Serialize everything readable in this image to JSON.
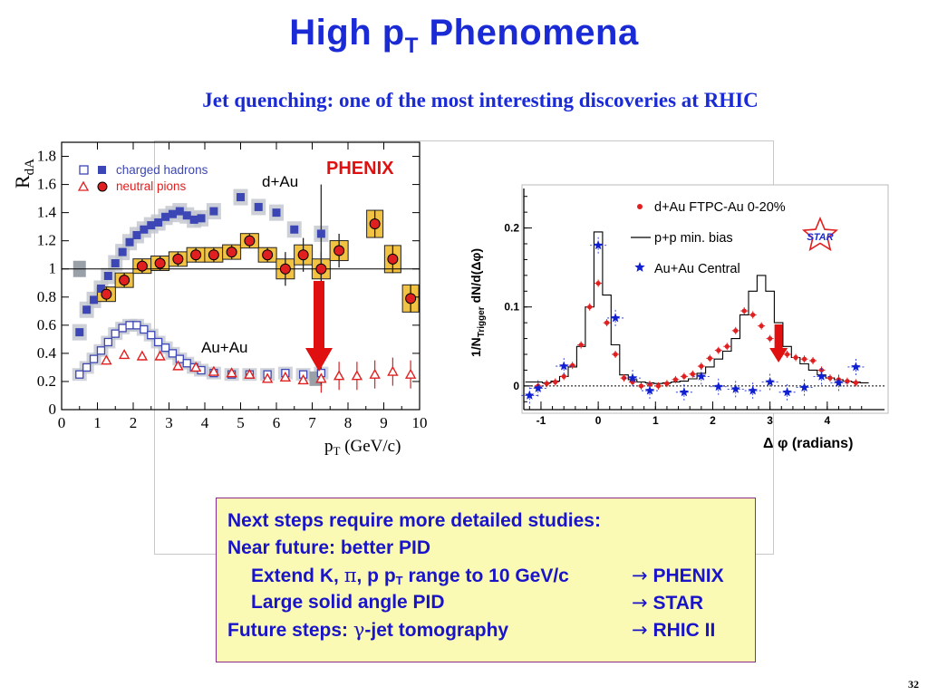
{
  "title": {
    "main": "High p",
    "sub": "T",
    "rest": " Phenomena"
  },
  "subtitle": "Jet quenching: one of the most interesting discoveries at RHIC",
  "notes": {
    "line1": "Next steps require more detailed studies:",
    "line2": "Near future: better PID",
    "line3_a": "Extend K, ",
    "line3_pi": "π",
    "line3_b": ", p  p",
    "line3_sub": "T",
    "line3_c": " range to 10 GeV/c",
    "line3_arrow": "→",
    "line3_target": "PHENIX",
    "line4_a": "Large solid angle PID",
    "line4_arrow": "→",
    "line4_target": "STAR",
    "line5_a": "Future steps: ",
    "line5_gamma": "γ",
    "line5_b": "-jet tomography",
    "line5_arrow": "→",
    "line5_target": "RHIC II"
  },
  "page_number": "32",
  "colors": {
    "title_blue": "#1a2bd6",
    "charged_blue": "#3c46b4",
    "neutral_red": "#e02020",
    "band_gray": "#c0c4cc",
    "band_yellow": "#f2c242",
    "arrow_red": "#e01010",
    "star_blue": "#1020d0",
    "note_bg": "#fafab4"
  },
  "chart_data": [
    {
      "type": "scatter",
      "title": "",
      "xlabel": "p",
      "xlabel_sub": "T",
      "xlabel_unit": " (GeV/c)",
      "ylabel": "R",
      "ylabel_sub": "dA",
      "xlim": [
        0,
        10
      ],
      "ylim": [
        0,
        1.9
      ],
      "xticks": [
        "0",
        "1",
        "2",
        "3",
        "4",
        "5",
        "6",
        "7",
        "8",
        "9",
        "10"
      ],
      "yticks": [
        "0",
        "0.2",
        "0.4",
        "0.6",
        "0.8",
        "1",
        "1.2",
        "1.4",
        "1.6",
        "1.8"
      ],
      "yticks_values": [
        0,
        0.2,
        0.4,
        0.6,
        0.8,
        1,
        1.2,
        1.4,
        1.6,
        1.8
      ],
      "legend": {
        "position": "top-left",
        "entries": [
          "charged hadrons",
          "neutral pions"
        ]
      },
      "annotations": {
        "experiment": "PHENIX",
        "system_top": "d+Au",
        "system_bottom": "Au+Au"
      },
      "series": [
        {
          "name": "charged hadrons",
          "system": "d+Au",
          "marker": "filled-square",
          "x": [
            0.5,
            0.7,
            0.9,
            1.1,
            1.3,
            1.5,
            1.7,
            1.9,
            2.1,
            2.3,
            2.5,
            2.7,
            2.9,
            3.1,
            3.3,
            3.5,
            3.7,
            3.9,
            4.25,
            5.0,
            5.5,
            6.0,
            6.5,
            7.25
          ],
          "y": [
            0.55,
            0.71,
            0.78,
            0.86,
            0.95,
            1.04,
            1.12,
            1.19,
            1.24,
            1.28,
            1.31,
            1.33,
            1.37,
            1.39,
            1.41,
            1.38,
            1.35,
            1.36,
            1.41,
            1.51,
            1.44,
            1.4,
            1.28,
            1.25
          ]
        },
        {
          "name": "charged hadrons",
          "system": "Au+Au",
          "marker": "open-square",
          "x": [
            0.5,
            0.7,
            0.9,
            1.1,
            1.3,
            1.5,
            1.7,
            1.9,
            2.1,
            2.3,
            2.5,
            2.7,
            2.9,
            3.1,
            3.3,
            3.5,
            3.7,
            3.9,
            4.25,
            4.75,
            5.25,
            5.75,
            6.25,
            6.75,
            7.25
          ],
          "y": [
            0.25,
            0.3,
            0.36,
            0.42,
            0.48,
            0.54,
            0.58,
            0.6,
            0.6,
            0.57,
            0.53,
            0.48,
            0.44,
            0.4,
            0.36,
            0.33,
            0.3,
            0.28,
            0.26,
            0.25,
            0.25,
            0.25,
            0.26,
            0.25,
            0.26
          ]
        },
        {
          "name": "neutral pions",
          "system": "d+Au",
          "marker": "filled-circle",
          "x": [
            1.25,
            1.75,
            2.25,
            2.75,
            3.25,
            3.75,
            4.25,
            4.75,
            5.25,
            5.75,
            6.25,
            6.75,
            7.25,
            7.75,
            8.75,
            9.25,
            9.75
          ],
          "y": [
            0.82,
            0.92,
            1.02,
            1.04,
            1.07,
            1.1,
            1.1,
            1.12,
            1.2,
            1.1,
            1.0,
            1.1,
            1.0,
            1.13,
            1.32,
            1.07,
            0.79
          ]
        },
        {
          "name": "neutral pions",
          "system": "Au+Au",
          "marker": "open-triangle",
          "x": [
            1.25,
            1.75,
            2.25,
            2.75,
            3.25,
            3.75,
            4.25,
            4.75,
            5.25,
            5.75,
            6.25,
            6.75,
            7.25,
            7.75,
            8.25,
            8.75,
            9.25,
            9.75
          ],
          "y": [
            0.35,
            0.39,
            0.38,
            0.38,
            0.31,
            0.3,
            0.27,
            0.26,
            0.25,
            0.22,
            0.23,
            0.21,
            0.22,
            0.24,
            0.24,
            0.25,
            0.27,
            0.25
          ]
        }
      ]
    },
    {
      "type": "scatter",
      "title": "",
      "xlabel": "Δ  φ (radians)",
      "ylabel": "1/N",
      "ylabel_sub": "Trigger",
      "ylabel_rest": " dN/d(Δφ)",
      "xlim": [
        -1.3,
        5.0
      ],
      "ylim": [
        -0.03,
        0.25
      ],
      "xticks": [
        "-1",
        "0",
        "1",
        "2",
        "3",
        "4"
      ],
      "xticks_values": [
        -1,
        0,
        1,
        2,
        3,
        4
      ],
      "yticks": [
        "0",
        "0.1",
        "0.2"
      ],
      "yticks_values": [
        0,
        0.1,
        0.2
      ],
      "legend": {
        "position": "top-right",
        "entries": [
          "d+Au FTPC-Au 0-20%",
          "p+p min. bias",
          "Au+Au Central"
        ]
      },
      "annotations": {
        "experiment": "STAR"
      },
      "series": [
        {
          "name": "d+Au FTPC-Au 0-20%",
          "marker": "filled-circle",
          "x": [
            -1.05,
            -0.9,
            -0.75,
            -0.6,
            -0.45,
            -0.3,
            -0.15,
            0.0,
            0.15,
            0.3,
            0.45,
            0.6,
            0.75,
            0.9,
            1.05,
            1.2,
            1.35,
            1.5,
            1.65,
            1.8,
            1.95,
            2.1,
            2.25,
            2.4,
            2.55,
            2.7,
            2.85,
            3.0,
            3.15,
            3.3,
            3.45,
            3.6,
            3.75,
            3.9,
            4.05,
            4.2,
            4.35,
            4.5
          ],
          "y": [
            0.0,
            0.003,
            0.005,
            0.012,
            0.026,
            0.052,
            0.1,
            0.13,
            0.08,
            0.04,
            0.01,
            0.005,
            0.0,
            0.002,
            0.0,
            0.003,
            0.008,
            0.012,
            0.015,
            0.025,
            0.035,
            0.045,
            0.05,
            0.07,
            0.095,
            0.09,
            0.076,
            0.06,
            0.06,
            0.04,
            0.036,
            0.034,
            0.032,
            0.02,
            0.01,
            0.008,
            0.006,
            0.004
          ]
        },
        {
          "name": "p+p min. bias",
          "marker": "step-line",
          "x": [
            -1.2,
            -1.05,
            -0.9,
            -0.75,
            -0.6,
            -0.45,
            -0.3,
            -0.15,
            0.0,
            0.15,
            0.3,
            0.45,
            0.6,
            0.75,
            0.9,
            1.05,
            1.2,
            1.35,
            1.5,
            1.65,
            1.8,
            1.95,
            2.1,
            2.25,
            2.4,
            2.55,
            2.7,
            2.85,
            3.0,
            3.15,
            3.3,
            3.45,
            3.6,
            3.75,
            3.9,
            4.05,
            4.2,
            4.35,
            4.5,
            4.65
          ],
          "y": [
            0.005,
            0.005,
            0.004,
            0.006,
            0.012,
            0.024,
            0.05,
            0.1,
            0.195,
            0.115,
            0.052,
            0.014,
            0.008,
            0.005,
            0.004,
            0.003,
            0.004,
            0.005,
            0.006,
            0.009,
            0.016,
            0.024,
            0.034,
            0.044,
            0.06,
            0.09,
            0.12,
            0.14,
            0.12,
            0.08,
            0.05,
            0.036,
            0.028,
            0.02,
            0.014,
            0.01,
            0.008,
            0.006,
            0.005,
            0.004
          ]
        },
        {
          "name": "Au+Au Central",
          "marker": "star",
          "x": [
            -1.2,
            -1.05,
            -0.6,
            0.0,
            0.3,
            0.6,
            0.9,
            1.5,
            1.8,
            2.1,
            2.4,
            2.7,
            3.0,
            3.3,
            3.6,
            3.9,
            4.2,
            4.5
          ],
          "y": [
            -0.012,
            -0.003,
            0.025,
            0.178,
            0.086,
            0.01,
            -0.006,
            -0.008,
            0.012,
            -0.001,
            -0.004,
            -0.006,
            0.005,
            -0.008,
            -0.002,
            0.012,
            0.004,
            0.024
          ]
        }
      ]
    }
  ]
}
